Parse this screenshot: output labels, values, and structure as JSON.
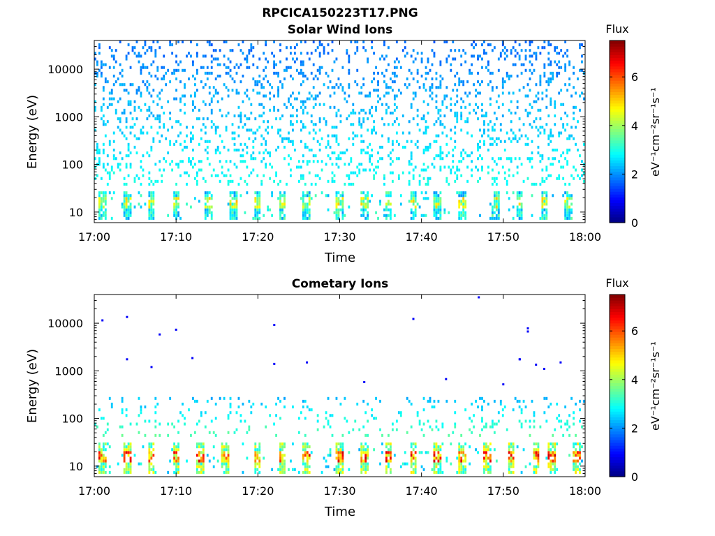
{
  "figure_title": "RPCICA150223T17.PNG",
  "chart_data": [
    {
      "type": "heatmap",
      "title": "Solar Wind Ions",
      "xlabel": "Time",
      "ylabel": "Energy (eV)",
      "x_ticks": [
        "17:00",
        "17:10",
        "17:20",
        "17:30",
        "17:40",
        "17:50",
        "18:00"
      ],
      "x_range": [
        "17:00",
        "18:00"
      ],
      "y_scale": "log",
      "y_range": [
        6,
        40000
      ],
      "y_ticks": [
        10,
        100,
        1000,
        10000
      ],
      "y_tick_labels": [
        "10",
        "100",
        "1000",
        "10000"
      ],
      "colorbar": {
        "title": "Flux",
        "label": "eV⁻¹cm⁻²sr⁻¹s⁻¹",
        "range": [
          0,
          7.5
        ],
        "ticks": [
          0,
          2,
          4,
          6
        ],
        "colormap": "jet"
      },
      "pattern": {
        "background_density": 0.16,
        "background_level": 1.5,
        "background_top_eV": 40000,
        "background_bottom_eV": 35,
        "band_low_eV": 7,
        "band_high_eV": 28,
        "band_peak_level": 5.2,
        "band_columns_min": [
          1,
          4,
          7,
          10,
          14,
          17,
          20,
          23,
          26,
          30,
          33,
          36,
          39,
          42,
          45,
          49,
          52,
          55,
          58,
          61
        ]
      }
    },
    {
      "type": "heatmap",
      "title": "Cometary Ions",
      "xlabel": "Time",
      "ylabel": "Energy (eV)",
      "x_ticks": [
        "17:00",
        "17:10",
        "17:20",
        "17:30",
        "17:40",
        "17:50",
        "18:00"
      ],
      "x_range": [
        "17:00",
        "18:00"
      ],
      "y_scale": "log",
      "y_range": [
        6,
        40000
      ],
      "y_ticks": [
        10,
        100,
        1000,
        10000
      ],
      "y_tick_labels": [
        "10",
        "100",
        "1000",
        "10000"
      ],
      "colorbar": {
        "title": "Flux",
        "label": "eV⁻¹cm⁻²sr⁻¹s⁻¹",
        "range": [
          0,
          7.5
        ],
        "ticks": [
          0,
          2,
          4,
          6
        ],
        "colormap": "jet"
      },
      "pattern": {
        "background_density": 0.1,
        "background_level": 2.0,
        "background_top_eV": 300,
        "background_bottom_eV": 40,
        "sparse_points": [
          {
            "t": "17:01",
            "e": 11500
          },
          {
            "t": "17:04",
            "e": 13500
          },
          {
            "t": "17:04",
            "e": 1750
          },
          {
            "t": "17:07",
            "e": 1200
          },
          {
            "t": "17:08",
            "e": 5800
          },
          {
            "t": "17:10",
            "e": 7300
          },
          {
            "t": "17:12",
            "e": 1850
          },
          {
            "t": "17:22",
            "e": 9200
          },
          {
            "t": "17:22",
            "e": 1400
          },
          {
            "t": "17:26",
            "e": 1500
          },
          {
            "t": "17:33",
            "e": 580
          },
          {
            "t": "17:39",
            "e": 12300
          },
          {
            "t": "17:43",
            "e": 670
          },
          {
            "t": "17:47",
            "e": 35000
          },
          {
            "t": "17:52",
            "e": 1750
          },
          {
            "t": "17:52",
            "e": 1750
          },
          {
            "t": "17:53",
            "e": 7800
          },
          {
            "t": "17:53",
            "e": 6700
          },
          {
            "t": "17:54",
            "e": 1350
          },
          {
            "t": "17:55",
            "e": 1100
          },
          {
            "t": "17:57",
            "e": 1500
          },
          {
            "t": "17:50",
            "e": 520
          }
        ],
        "band_low_eV": 7,
        "band_high_eV": 30,
        "band_peak_level": 7.0,
        "band_columns_min": [
          1,
          4,
          7,
          10,
          13,
          16,
          20,
          23,
          26,
          30,
          33,
          36,
          39,
          42,
          45,
          48,
          51,
          54,
          56,
          59
        ]
      }
    }
  ]
}
